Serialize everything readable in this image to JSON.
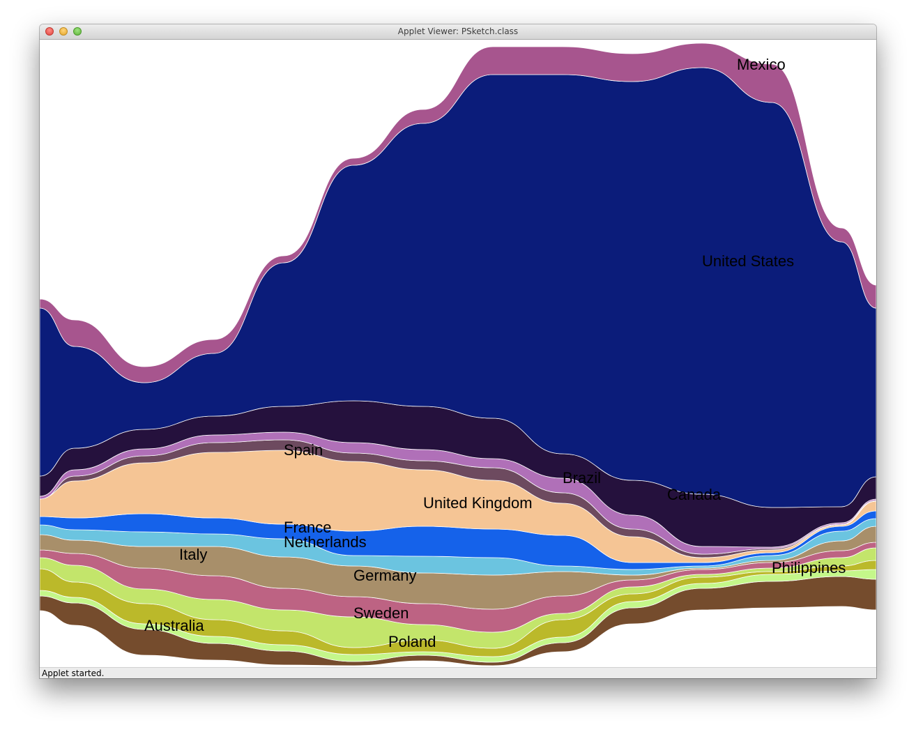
{
  "window": {
    "title": "Applet Viewer: PSketch.class",
    "status": "Applet started."
  },
  "chart_data": {
    "type": "area",
    "layout": "streamgraph",
    "series": [
      {
        "name": "Australia",
        "color": "#754c2d"
      },
      {
        "name": "Poland",
        "color": "#c4f78a"
      },
      {
        "name": "Sweden",
        "color": "#bbb92a"
      },
      {
        "name": "Philippines",
        "color": "#c3e56b"
      },
      {
        "name": "Italy",
        "color": "#bd6383"
      },
      {
        "name": "Germany",
        "color": "#a88f6a"
      },
      {
        "name": "Netherlands",
        "color": "#6bc4e0"
      },
      {
        "name": "France",
        "color": "#1562ea"
      },
      {
        "name": "United Kingdom",
        "color": "#f5c595"
      },
      {
        "name": "Spain",
        "color": "#6d4a5f"
      },
      {
        "name": "Brazil",
        "color": "#b070b8"
      },
      {
        "name": "Canada",
        "color": "#25113d"
      },
      {
        "name": "United States",
        "color": "#0b1c7a"
      },
      {
        "name": "Mexico",
        "color": "#a7558e"
      }
    ]
  }
}
